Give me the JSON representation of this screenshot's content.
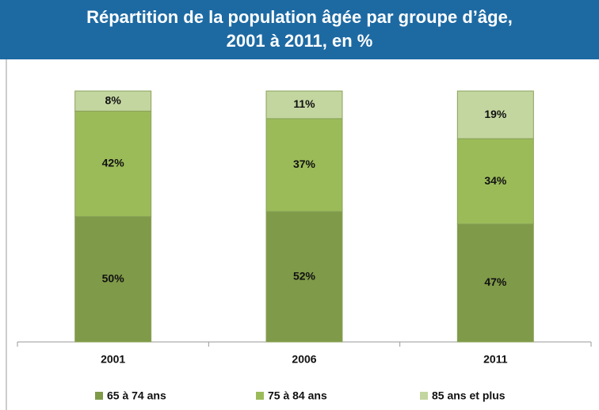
{
  "chart_data": {
    "type": "stacked_bar",
    "title": "Répartition de la population âgée par groupe d’âge,\n2001 à 2011, en %",
    "categories": [
      "2001",
      "2006",
      "2011"
    ],
    "series": [
      {
        "name": "65 à 74 ans",
        "color": "#7f9a48",
        "values": [
          50,
          52,
          47
        ],
        "value_labels": [
          "50%",
          "52%",
          "47%"
        ]
      },
      {
        "name": "75 à 84 ans",
        "color": "#9bbb59",
        "values": [
          42,
          37,
          34
        ],
        "value_labels": [
          "42%",
          "37%",
          "34%"
        ]
      },
      {
        "name": "85 ans et plus",
        "color": "#c4d6a0",
        "values": [
          8,
          11,
          19
        ],
        "value_labels": [
          "8%",
          "11%",
          "19%"
        ]
      }
    ],
    "legend": "bottom"
  }
}
